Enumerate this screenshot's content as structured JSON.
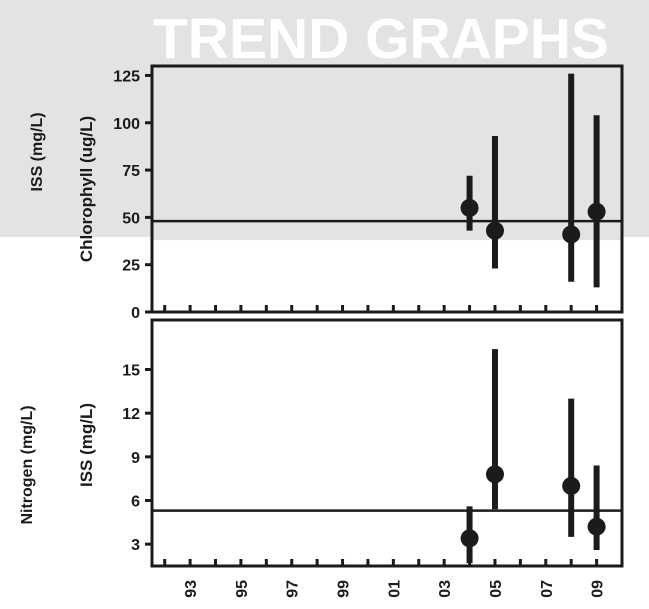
{
  "header": {
    "title": "TREND GRAPHS"
  },
  "background": {
    "gray": "#e3e3e4",
    "white_band_top_label": "ISS (mg/L)",
    "white_band_bottom_label": "Nitrogen (mg/L)"
  },
  "colors": {
    "marks": "#1b1b1b",
    "panel_white": "#ffffff",
    "title_text": "#ffffff"
  },
  "chart_data": [
    {
      "type": "scatter",
      "title": "",
      "xlabel": "",
      "ylabel": "Chlorophyll (ug/L)",
      "ylim": [
        0,
        130
      ],
      "xlim": [
        1991.5,
        2010
      ],
      "shaded_above": 38,
      "reference_line": 48,
      "yticks": [
        0,
        25,
        50,
        75,
        100,
        125
      ],
      "ytick_labels": [
        "0",
        "25",
        "50",
        "75",
        "100",
        "125"
      ],
      "xticks": [
        1992,
        1993,
        1994,
        1995,
        1996,
        1997,
        1998,
        1999,
        2000,
        2001,
        2002,
        2003,
        2004,
        2005,
        2006,
        2007,
        2008,
        2009
      ],
      "grid": false,
      "series": [
        {
          "x": [
            2004,
            2005,
            2008,
            2009
          ],
          "y": [
            55,
            43,
            41,
            53
          ],
          "range_low": [
            43,
            23,
            16,
            13
          ],
          "range_high": [
            72,
            93,
            126,
            104
          ]
        }
      ]
    },
    {
      "type": "scatter",
      "title": "",
      "xlabel": "",
      "ylabel": "ISS (mg/L)",
      "ylim": [
        1.5,
        18.4
      ],
      "xlim": [
        1991.5,
        2010
      ],
      "reference_line": 5.3,
      "yticks": [
        3,
        6,
        9,
        12,
        15
      ],
      "ytick_labels": [
        "3",
        "6",
        "9",
        "12",
        "15"
      ],
      "xticks": [
        1992,
        1993,
        1994,
        1995,
        1996,
        1997,
        1998,
        1999,
        2000,
        2001,
        2002,
        2003,
        2004,
        2005,
        2006,
        2007,
        2008,
        2009
      ],
      "xtick_labels": [
        "93",
        "95",
        "97",
        "99",
        "01",
        "03",
        "05",
        "07",
        "09"
      ],
      "xtick_label_years": [
        1993,
        1995,
        1997,
        1999,
        2001,
        2003,
        2005,
        2007,
        2009
      ],
      "grid": false,
      "series": [
        {
          "x": [
            2004,
            2005,
            2008,
            2009
          ],
          "y": [
            3.4,
            7.8,
            7.0,
            4.2
          ],
          "range_low": [
            1.7,
            5.4,
            3.5,
            2.6
          ],
          "range_high": [
            5.6,
            16.4,
            13.0,
            8.4
          ]
        }
      ]
    }
  ]
}
